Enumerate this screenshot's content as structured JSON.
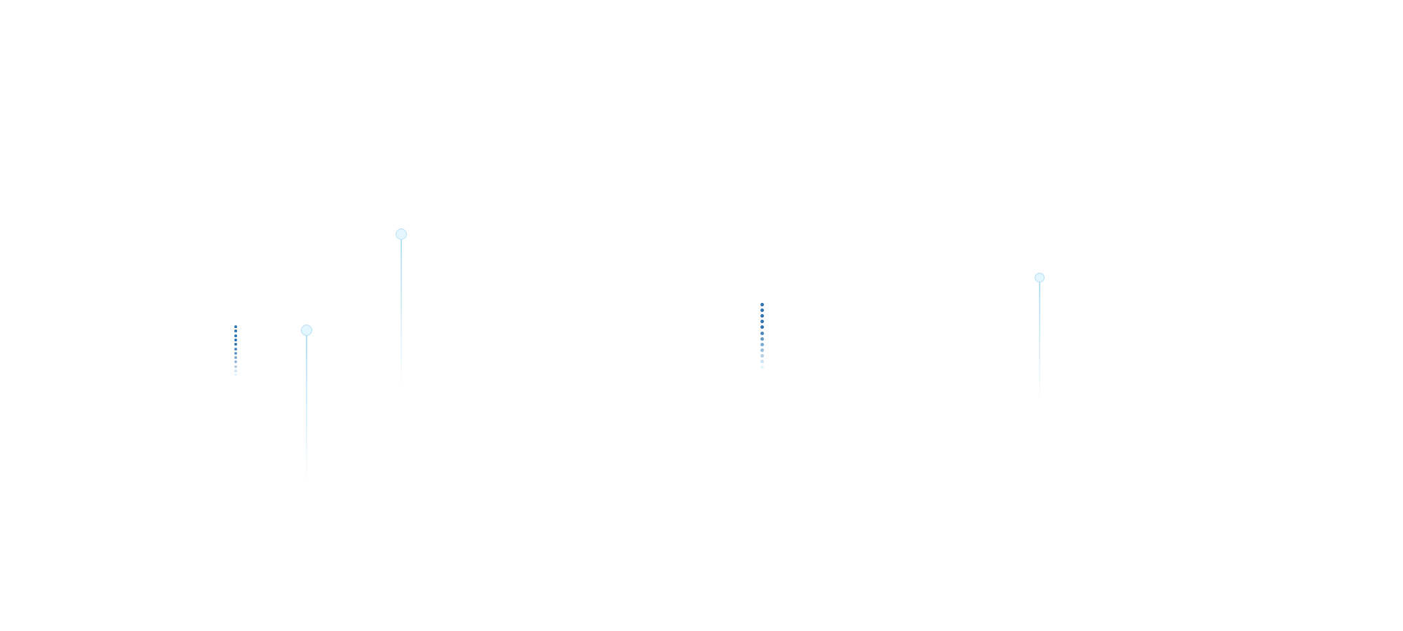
{
  "decor": {
    "dot_color_start": "#2f72b0",
    "dot_color_end": "#e6f5fc",
    "pin_fill": "#e3f5fd",
    "pin_stroke": "#b6e0f5",
    "pin_icon": "map-pin-icon"
  }
}
